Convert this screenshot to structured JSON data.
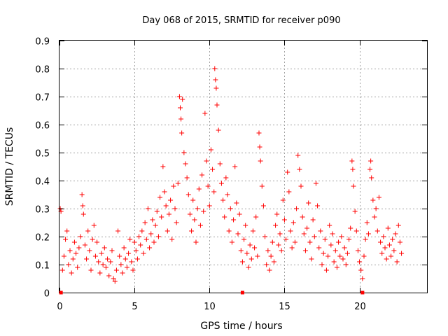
{
  "chart_data": {
    "type": "scatter",
    "title": "Day 068 of 2015, SRMTID for receiver p090",
    "xlabel": "GPS time / hours",
    "ylabel": "SRMTID / TECUs",
    "xlim": [
      0,
      24.5
    ],
    "ylim": [
      0,
      0.9
    ],
    "xticks": [
      0,
      5,
      10,
      15,
      20
    ],
    "xtick_labels": [
      "0",
      "5",
      "10",
      "15",
      "20"
    ],
    "yticks": [
      0,
      0.1,
      0.2,
      0.3,
      0.4,
      0.5,
      0.6,
      0.7,
      0.8,
      0.9
    ],
    "ytick_labels": [
      "0",
      "0.1",
      "0.2",
      "0.3",
      "0.4",
      "0.5",
      "0.6",
      "0.7",
      "0.8",
      "0.9"
    ],
    "grid": true,
    "marker": "+",
    "color": "#ff0000",
    "baseline_marks_x": [
      0.1,
      12.2,
      20.2
    ],
    "series": [
      {
        "name": "SRMTID",
        "points": [
          [
            0.05,
            0.3
          ],
          [
            0.1,
            0.29
          ],
          [
            0.2,
            0.08
          ],
          [
            0.3,
            0.13
          ],
          [
            0.4,
            0.19
          ],
          [
            0.5,
            0.22
          ],
          [
            0.6,
            0.1
          ],
          [
            0.7,
            0.15
          ],
          [
            0.8,
            0.07
          ],
          [
            0.9,
            0.12
          ],
          [
            1.0,
            0.18
          ],
          [
            1.1,
            0.14
          ],
          [
            1.2,
            0.09
          ],
          [
            1.3,
            0.16
          ],
          [
            1.4,
            0.2
          ],
          [
            1.5,
            0.35
          ],
          [
            1.55,
            0.31
          ],
          [
            1.6,
            0.28
          ],
          [
            1.7,
            0.17
          ],
          [
            1.8,
            0.12
          ],
          [
            1.9,
            0.22
          ],
          [
            2.0,
            0.15
          ],
          [
            2.1,
            0.08
          ],
          [
            2.2,
            0.19
          ],
          [
            2.3,
            0.24
          ],
          [
            2.4,
            0.13
          ],
          [
            2.5,
            0.18
          ],
          [
            2.6,
            0.11
          ],
          [
            2.7,
            0.07
          ],
          [
            2.8,
            0.14
          ],
          [
            2.9,
            0.1
          ],
          [
            3.0,
            0.16
          ],
          [
            3.1,
            0.09
          ],
          [
            3.2,
            0.12
          ],
          [
            3.3,
            0.06
          ],
          [
            3.4,
            0.11
          ],
          [
            3.5,
            0.15
          ],
          [
            3.6,
            0.05
          ],
          [
            3.7,
            0.04
          ],
          [
            3.8,
            0.08
          ],
          [
            3.9,
            0.22
          ],
          [
            4.0,
            0.13
          ],
          [
            4.1,
            0.1
          ],
          [
            4.2,
            0.07
          ],
          [
            4.3,
            0.16
          ],
          [
            4.4,
            0.12
          ],
          [
            4.5,
            0.09
          ],
          [
            4.6,
            0.14
          ],
          [
            4.7,
            0.19
          ],
          [
            4.8,
            0.11
          ],
          [
            4.9,
            0.08
          ],
          [
            5.0,
            0.18
          ],
          [
            5.1,
            0.15
          ],
          [
            5.2,
            0.12
          ],
          [
            5.3,
            0.2
          ],
          [
            5.4,
            0.17
          ],
          [
            5.5,
            0.22
          ],
          [
            5.6,
            0.14
          ],
          [
            5.7,
            0.25
          ],
          [
            5.8,
            0.19
          ],
          [
            5.9,
            0.3
          ],
          [
            6.0,
            0.16
          ],
          [
            6.1,
            0.21
          ],
          [
            6.2,
            0.26
          ],
          [
            6.3,
            0.18
          ],
          [
            6.4,
            0.24
          ],
          [
            6.5,
            0.29
          ],
          [
            6.6,
            0.2
          ],
          [
            6.7,
            0.34
          ],
          [
            6.8,
            0.27
          ],
          [
            6.9,
            0.45
          ],
          [
            7.0,
            0.36
          ],
          [
            7.1,
            0.31
          ],
          [
            7.2,
            0.22
          ],
          [
            7.3,
            0.28
          ],
          [
            7.4,
            0.33
          ],
          [
            7.5,
            0.19
          ],
          [
            7.6,
            0.38
          ],
          [
            7.7,
            0.3
          ],
          [
            7.8,
            0.25
          ],
          [
            7.9,
            0.39
          ],
          [
            8.0,
            0.7
          ],
          [
            8.05,
            0.66
          ],
          [
            8.1,
            0.62
          ],
          [
            8.15,
            0.57
          ],
          [
            8.2,
            0.69
          ],
          [
            8.3,
            0.5
          ],
          [
            8.4,
            0.46
          ],
          [
            8.5,
            0.41
          ],
          [
            8.6,
            0.35
          ],
          [
            8.7,
            0.28
          ],
          [
            8.8,
            0.22
          ],
          [
            8.9,
            0.33
          ],
          [
            9.0,
            0.26
          ],
          [
            9.1,
            0.18
          ],
          [
            9.2,
            0.3
          ],
          [
            9.3,
            0.37
          ],
          [
            9.4,
            0.24
          ],
          [
            9.5,
            0.42
          ],
          [
            9.6,
            0.29
          ],
          [
            9.7,
            0.64
          ],
          [
            9.8,
            0.47
          ],
          [
            9.9,
            0.38
          ],
          [
            10.0,
            0.31
          ],
          [
            10.1,
            0.51
          ],
          [
            10.2,
            0.44
          ],
          [
            10.3,
            0.36
          ],
          [
            10.35,
            0.8
          ],
          [
            10.4,
            0.76
          ],
          [
            10.45,
            0.73
          ],
          [
            10.5,
            0.67
          ],
          [
            10.6,
            0.58
          ],
          [
            10.7,
            0.46
          ],
          [
            10.8,
            0.39
          ],
          [
            10.9,
            0.33
          ],
          [
            11.0,
            0.27
          ],
          [
            11.1,
            0.41
          ],
          [
            11.2,
            0.35
          ],
          [
            11.3,
            0.22
          ],
          [
            11.4,
            0.3
          ],
          [
            11.5,
            0.18
          ],
          [
            11.6,
            0.26
          ],
          [
            11.7,
            0.45
          ],
          [
            11.8,
            0.32
          ],
          [
            11.9,
            0.21
          ],
          [
            12.0,
            0.28
          ],
          [
            12.1,
            0.15
          ],
          [
            12.2,
            0.11
          ],
          [
            12.3,
            0.19
          ],
          [
            12.4,
            0.24
          ],
          [
            12.5,
            0.14
          ],
          [
            12.6,
            0.09
          ],
          [
            12.7,
            0.17
          ],
          [
            12.8,
            0.12
          ],
          [
            12.9,
            0.22
          ],
          [
            13.0,
            0.16
          ],
          [
            13.1,
            0.27
          ],
          [
            13.2,
            0.13
          ],
          [
            13.3,
            0.57
          ],
          [
            13.35,
            0.52
          ],
          [
            13.4,
            0.47
          ],
          [
            13.5,
            0.38
          ],
          [
            13.6,
            0.31
          ],
          [
            13.7,
            0.2
          ],
          [
            13.8,
            0.1
          ],
          [
            13.9,
            0.15
          ],
          [
            14.0,
            0.08
          ],
          [
            14.1,
            0.13
          ],
          [
            14.2,
            0.18
          ],
          [
            14.3,
            0.11
          ],
          [
            14.4,
            0.24
          ],
          [
            14.5,
            0.28
          ],
          [
            14.6,
            0.17
          ],
          [
            14.7,
            0.21
          ],
          [
            14.8,
            0.15
          ],
          [
            14.9,
            0.33
          ],
          [
            15.0,
            0.26
          ],
          [
            15.1,
            0.19
          ],
          [
            15.2,
            0.43
          ],
          [
            15.3,
            0.36
          ],
          [
            15.4,
            0.22
          ],
          [
            15.5,
            0.16
          ],
          [
            15.6,
            0.25
          ],
          [
            15.7,
            0.18
          ],
          [
            15.8,
            0.3
          ],
          [
            15.9,
            0.49
          ],
          [
            16.0,
            0.44
          ],
          [
            16.1,
            0.38
          ],
          [
            16.2,
            0.27
          ],
          [
            16.3,
            0.21
          ],
          [
            16.4,
            0.15
          ],
          [
            16.5,
            0.23
          ],
          [
            16.6,
            0.32
          ],
          [
            16.7,
            0.18
          ],
          [
            16.8,
            0.12
          ],
          [
            16.9,
            0.26
          ],
          [
            17.0,
            0.2
          ],
          [
            17.1,
            0.39
          ],
          [
            17.2,
            0.31
          ],
          [
            17.3,
            0.16
          ],
          [
            17.4,
            0.22
          ],
          [
            17.5,
            0.1
          ],
          [
            17.6,
            0.14
          ],
          [
            17.7,
            0.19
          ],
          [
            17.8,
            0.08
          ],
          [
            17.9,
            0.13
          ],
          [
            18.0,
            0.24
          ],
          [
            18.1,
            0.17
          ],
          [
            18.2,
            0.21
          ],
          [
            18.3,
            0.11
          ],
          [
            18.4,
            0.15
          ],
          [
            18.5,
            0.09
          ],
          [
            18.6,
            0.18
          ],
          [
            18.7,
            0.13
          ],
          [
            18.8,
            0.2
          ],
          [
            18.9,
            0.12
          ],
          [
            19.0,
            0.16
          ],
          [
            19.1,
            0.1
          ],
          [
            19.2,
            0.14
          ],
          [
            19.3,
            0.19
          ],
          [
            19.4,
            0.23
          ],
          [
            19.5,
            0.47
          ],
          [
            19.55,
            0.44
          ],
          [
            19.6,
            0.38
          ],
          [
            19.7,
            0.29
          ],
          [
            19.8,
            0.22
          ],
          [
            19.9,
            0.15
          ],
          [
            20.0,
            0.11
          ],
          [
            20.1,
            0.08
          ],
          [
            20.2,
            0.05
          ],
          [
            20.3,
            0.13
          ],
          [
            20.4,
            0.19
          ],
          [
            20.5,
            0.25
          ],
          [
            20.6,
            0.21
          ],
          [
            20.7,
            0.44
          ],
          [
            20.75,
            0.47
          ],
          [
            20.8,
            0.41
          ],
          [
            20.9,
            0.33
          ],
          [
            21.0,
            0.27
          ],
          [
            21.1,
            0.3
          ],
          [
            21.2,
            0.22
          ],
          [
            21.3,
            0.34
          ],
          [
            21.4,
            0.18
          ],
          [
            21.5,
            0.14
          ],
          [
            21.6,
            0.2
          ],
          [
            21.7,
            0.16
          ],
          [
            21.8,
            0.12
          ],
          [
            21.9,
            0.23
          ],
          [
            22.0,
            0.17
          ],
          [
            22.1,
            0.13
          ],
          [
            22.2,
            0.19
          ],
          [
            22.3,
            0.15
          ],
          [
            22.4,
            0.21
          ],
          [
            22.5,
            0.11
          ],
          [
            22.6,
            0.24
          ],
          [
            22.7,
            0.18
          ],
          [
            22.8,
            0.14
          ]
        ]
      }
    ]
  }
}
